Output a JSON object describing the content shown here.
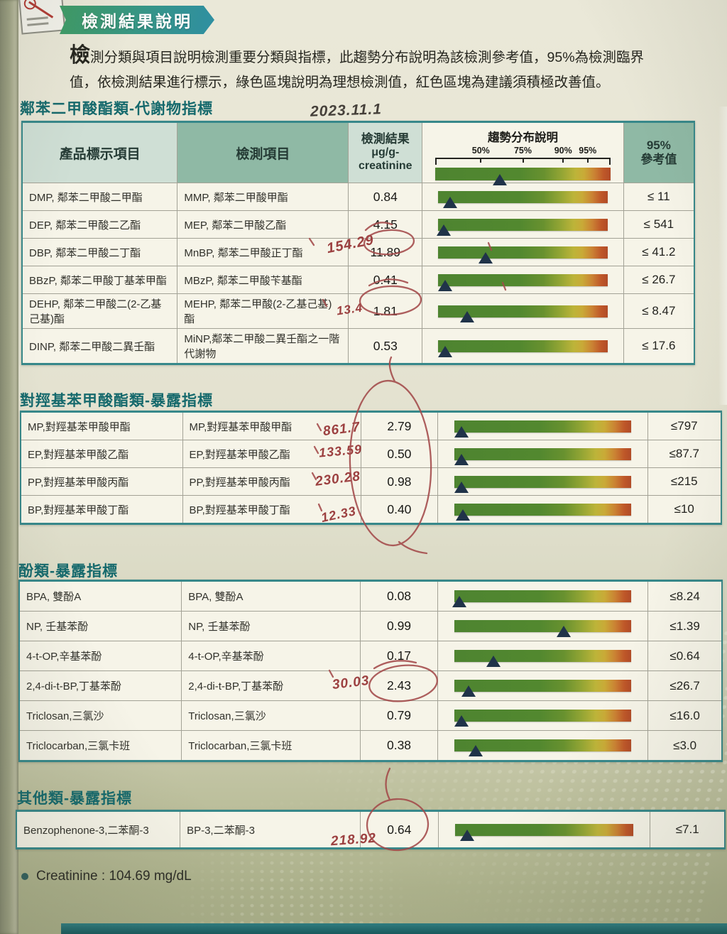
{
  "page": {
    "badge_title": "檢測結果說明",
    "intro_dropcap": "檢",
    "intro_text": "測分類與項目說明檢測重要分類與指標，此趨勢分布說明為該檢測參考值，95%為檢測臨界值，依檢測結果進行標示，綠色區塊說明為理想檢測值，紅色區塊為建議須積極改善值。"
  },
  "table_header": {
    "product": "產品標示項目",
    "test": "檢測項目",
    "result_line1": "檢測結果",
    "result_line2": "μg/g-",
    "result_line3": "creatinine",
    "trend": "趨勢分布說明",
    "ticks": [
      "50%",
      "75%",
      "90%",
      "95%"
    ],
    "legend_marker_pct": 37,
    "ref_line1": "95%",
    "ref_line2": "參考值"
  },
  "sections": [
    {
      "title": "鄰苯二甲酸酯類-代謝物指標",
      "rows": [
        {
          "product": "DMP, 鄰苯二甲酸二甲酯",
          "test": "MMP, 鄰苯二甲酸甲酯",
          "result": "0.84",
          "marker_pct": 7,
          "ref": "≤ 11"
        },
        {
          "product": "DEP, 鄰苯二甲酸二乙酯",
          "test": "MEP, 鄰苯二甲酸乙酯",
          "result": "4.15",
          "marker_pct": 3,
          "ref": "≤ 541"
        },
        {
          "product": "DBP, 鄰苯二甲酸二丁酯",
          "test": "MnBP, 鄰苯二甲酸正丁酯",
          "result": "11.89",
          "marker_pct": 28,
          "ref": "≤ 41.2"
        },
        {
          "product": "BBzP, 鄰苯二甲酸丁基苯甲酯",
          "test": "MBzP, 鄰苯二甲酸苄基酯",
          "result": "0.41",
          "marker_pct": 4,
          "ref": "≤ 26.7"
        },
        {
          "product": "DEHP, 鄰苯二甲酸二(2-乙基己基)酯",
          "test": "MEHP, 鄰苯二甲酸(2-乙基己基)酯",
          "result": "1.81",
          "marker_pct": 17,
          "ref": "≤ 8.47"
        },
        {
          "product": "DINP, 鄰苯二甲酸二異壬酯",
          "test": "MiNP,鄰苯二甲酸二異壬酯之一階代謝物",
          "result": "0.53",
          "marker_pct": 4,
          "ref": "≤ 17.6"
        }
      ]
    },
    {
      "title": "對羥基苯甲酸酯類-暴露指標",
      "rows": [
        {
          "product": "MP,對羥基苯甲酸甲酯",
          "test": "MP,對羥基苯甲酸甲酯",
          "result": "2.79",
          "marker_pct": 4,
          "ref": "≤797"
        },
        {
          "product": "EP,對羥基苯甲酸乙酯",
          "test": "EP,對羥基苯甲酸乙酯",
          "result": "0.50",
          "marker_pct": 4,
          "ref": "≤87.7"
        },
        {
          "product": "PP,對羥基苯甲酸丙酯",
          "test": "PP,對羥基苯甲酸丙酯",
          "result": "0.98",
          "marker_pct": 4,
          "ref": "≤215"
        },
        {
          "product": "BP,對羥基苯甲酸丁酯",
          "test": "BP,對羥基苯甲酸丁酯",
          "result": "0.40",
          "marker_pct": 5,
          "ref": "≤10"
        }
      ]
    },
    {
      "title": "酚類-暴露指標",
      "rows": [
        {
          "product": "BPA, 雙酚A",
          "test": "BPA, 雙酚A",
          "result": "0.08",
          "marker_pct": 3,
          "ref": "≤8.24"
        },
        {
          "product": "NP, 壬基苯酚",
          "test": "NP, 壬基苯酚",
          "result": "0.99",
          "marker_pct": 62,
          "ref": "≤1.39"
        },
        {
          "product": "4-t-OP,辛基苯酚",
          "test": "4-t-OP,辛基苯酚",
          "result": "0.17",
          "marker_pct": 22,
          "ref": "≤0.64"
        },
        {
          "product": "2,4-di-t-BP,丁基苯酚",
          "test": "2,4-di-t-BP,丁基苯酚",
          "result": "2.43",
          "marker_pct": 8,
          "ref": "≤26.7"
        },
        {
          "product": "Triclosan,三氯沙",
          "test": "Triclosan,三氯沙",
          "result": "0.79",
          "marker_pct": 4,
          "ref": "≤16.0"
        },
        {
          "product": "Triclocarban,三氯卡班",
          "test": "Triclocarban,三氯卡班",
          "result": "0.38",
          "marker_pct": 12,
          "ref": "≤3.0"
        }
      ]
    },
    {
      "title": "其他類-暴露指標",
      "rows": [
        {
          "product": "Benzophenone-3,二苯酮-3",
          "test": "BP-3,二苯酮-3",
          "result": "0.64",
          "marker_pct": 7,
          "ref": "≤7.1"
        }
      ]
    }
  ],
  "annotations": {
    "date": "2023.11.1",
    "mnbp": "154.29",
    "mehp": "13.4",
    "mp": "861.7",
    "ep": "133.59",
    "pp": "230.28",
    "bp": "12.33",
    "butyl_phenol": "30.03",
    "bp3": "218.92"
  },
  "footer": {
    "creatinine": "Creatinine : 104.69 mg/dL"
  },
  "colors": {
    "badge_green": "#3f9c66",
    "badge_teal": "#2f8fa2",
    "section_title": "#15696c",
    "header_green": "#8fb9a5",
    "header_light": "#cfdfd5",
    "table_border": "#37888a",
    "bar_green": "#4e8430",
    "bar_yellow": "#c9aa37",
    "bar_red": "#b14b27",
    "marker_navy": "#203349",
    "handwriting_red": "#9c4040"
  }
}
